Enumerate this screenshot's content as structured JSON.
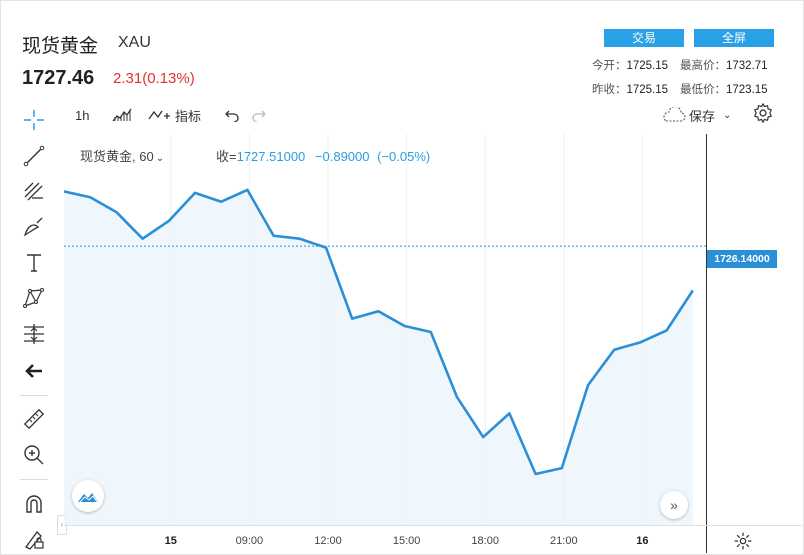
{
  "header": {
    "title": "现货黄金",
    "symbol": "XAU",
    "price": "1727.46",
    "change": "2.31(0.13%)",
    "trade_label": "交易",
    "fullscreen_label": "全屏",
    "open_label": "今开：",
    "open_value": "1725.15",
    "high_label": "最高价：",
    "high_value": "1732.71",
    "prev_close_label": "昨收：",
    "prev_close_value": "1725.15",
    "low_label": "最低价：",
    "low_value": "1723.15"
  },
  "toolbar": {
    "interval": "1h",
    "indicators_label": "指标",
    "save_label": "保存"
  },
  "chart_header": {
    "name": "现货黄金, 60",
    "close_label": "收=",
    "close_value": "1727.51000",
    "change_value": "−0.89000",
    "change_pct": "(−0.05%)"
  },
  "price_tag": "1726.14000",
  "colors": {
    "line": "#2b8fd6",
    "accent": "#2aa0e6",
    "down": "#e5322d"
  },
  "chart_data": {
    "type": "area",
    "title": "",
    "xlabel": "",
    "ylabel": "",
    "x_ticks": [
      {
        "label": "15",
        "at": 4,
        "bold": true
      },
      {
        "label": "09:00",
        "at": 7,
        "bold": false
      },
      {
        "label": "12:00",
        "at": 10,
        "bold": false
      },
      {
        "label": "15:00",
        "at": 13,
        "bold": false
      },
      {
        "label": "18:00",
        "at": 16,
        "bold": false
      },
      {
        "label": "21:00",
        "at": 19,
        "bold": false
      },
      {
        "label": "16",
        "at": 22,
        "bold": true
      }
    ],
    "values": [
      1730.9,
      1730.7,
      1730.2,
      1729.3,
      1729.9,
      1730.85,
      1730.55,
      1730.95,
      1729.4,
      1729.3,
      1729.0,
      1726.6,
      1726.85,
      1726.35,
      1726.15,
      1723.95,
      1722.6,
      1723.4,
      1721.35,
      1721.55,
      1724.35,
      1725.55,
      1725.8,
      1726.2,
      1727.55
    ],
    "ylim": [
      1720,
      1732.5
    ],
    "grid": true,
    "last_price": 1726.14,
    "reference_line": 1729.05
  }
}
